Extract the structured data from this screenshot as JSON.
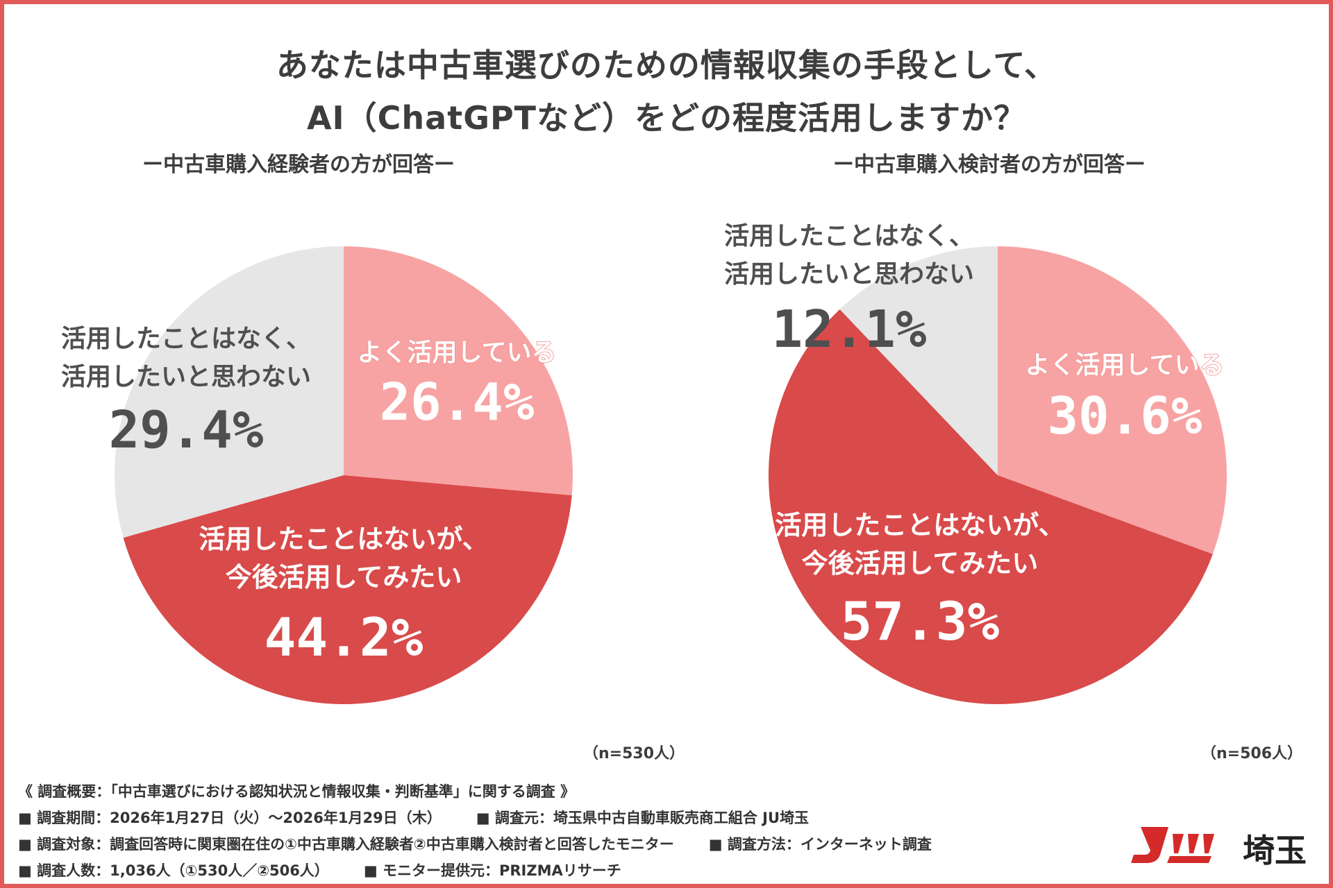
{
  "title_line1": "あなたは中古車選びのための情報収集の手段として、",
  "title_line2": "AI（ChatGPTなど）をどの程度活用しますか？",
  "colors": {
    "frame": "#e05a5a",
    "light_pink": "#f8a3a3",
    "red": "#d94a4a",
    "gray": "#e6e6e6",
    "dark_text": "#3d3d3d",
    "gray_text": "#555555",
    "white_text": "#ffffff",
    "logo_red": "#d42a2a"
  },
  "chart_data": [
    {
      "type": "pie",
      "title": "ー中古車購入経験者の方が回答ー",
      "note": "（n=530人）",
      "slices": [
        {
          "label_lines": [
            "よく活用している"
          ],
          "value": 26.4,
          "value_label": "26.4%",
          "color": "#f8a3a3"
        },
        {
          "label_lines": [
            "活用したことはないが、",
            "今後活用してみたい"
          ],
          "value": 44.2,
          "value_label": "44.2%",
          "color": "#d94a4a"
        },
        {
          "label_lines": [
            "活用したことはなく、",
            "活用したいと思わない"
          ],
          "value": 29.4,
          "value_label": "29.4%",
          "color": "#e6e6e6"
        }
      ]
    },
    {
      "type": "pie",
      "title": "ー中古車購入検討者の方が回答ー",
      "note": "（n=506人）",
      "slices": [
        {
          "label_lines": [
            "よく活用している"
          ],
          "value": 30.6,
          "value_label": "30.6%",
          "color": "#f8a3a3"
        },
        {
          "label_lines": [
            "活用したことはないが、",
            "今後活用してみたい"
          ],
          "value": 57.3,
          "value_label": "57.3%",
          "color": "#d94a4a"
        },
        {
          "label_lines": [
            "活用したことはなく、",
            "活用したいと思わない"
          ],
          "value": 12.1,
          "value_label": "12.1%",
          "color": "#e6e6e6"
        }
      ]
    }
  ],
  "footer": {
    "line1": "《 調査概要：「中古車選びにおける認知状況と情報収集・判断基準」に関する調査 》",
    "line2a": "■ 調査期間：2026年1月27日（火）～2026年1月29日（木）",
    "line2b": "■ 調査元：埼玉県中古自動車販売商工組合 JU埼玉",
    "line3a": "■ 調査対象：調査回答時に関東圏在住の①中古車購入経験者②中古車購入検討者と回答したモニター",
    "line3b": "■ 調査方法：インターネット調査",
    "line4a": "■ 調査人数：1,036人（①530人／②506人）",
    "line4b": "■ モニター提供元：PRIZMAリサーチ"
  },
  "logo": {
    "text": "埼玉",
    "mark_icon": "ju-logo-mark"
  }
}
